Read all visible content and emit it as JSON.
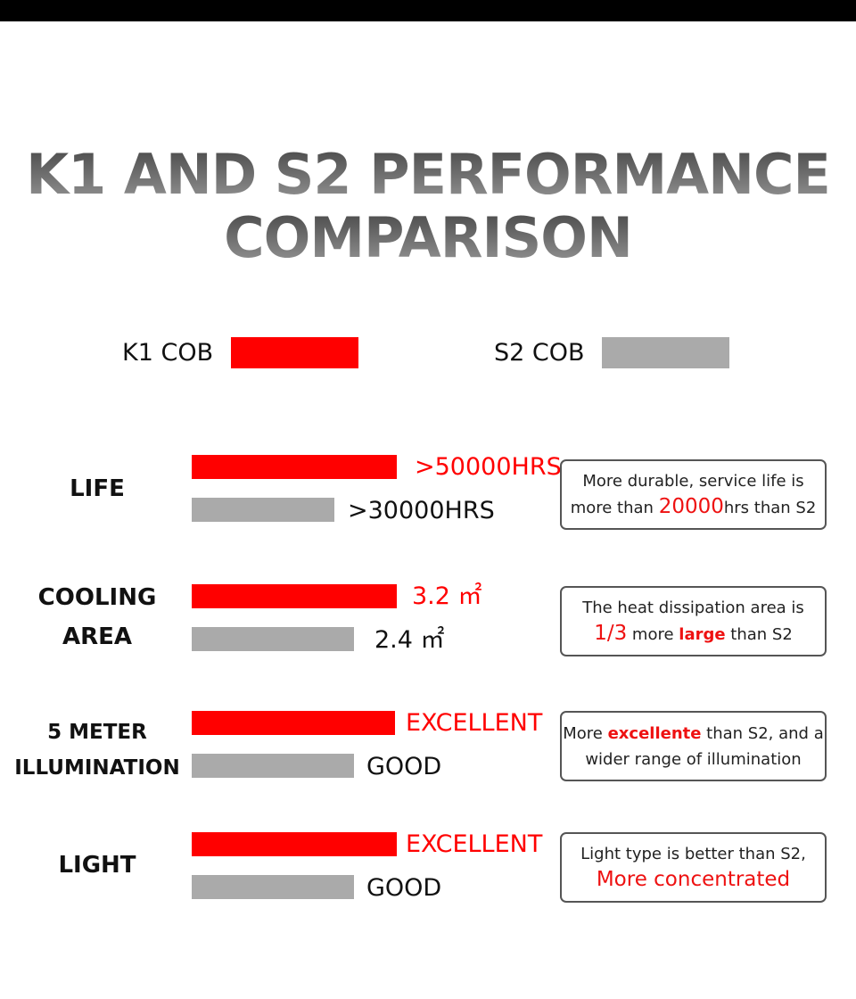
{
  "header": {
    "title_lines": [
      "K1 AND S2 PERFORMANCE",
      "COMPARISON"
    ]
  },
  "legend": [
    {
      "label": "K1 COB",
      "color": "#ff0000"
    },
    {
      "label": "S2 COB",
      "color": "#aaaaaa"
    }
  ],
  "rows": [
    {
      "label_lines": [
        "LIFE"
      ],
      "k1": ">50000HRS",
      "s2": ">30000HRS",
      "note_lines": [
        [
          {
            "text": "More durable, service life is",
            "style": "plain"
          }
        ],
        [
          {
            "text": "more than ",
            "style": "plain"
          },
          {
            "text": "20000",
            "style": "red-big"
          },
          {
            "text": "hrs than S2",
            "style": "plain"
          }
        ]
      ]
    },
    {
      "label_lines": [
        "COOLING",
        "AREA"
      ],
      "k1": "3.2 ㎡",
      "s2": "2.4 ㎡",
      "note_lines": [
        [
          {
            "text": "The heat dissipation area is",
            "style": "plain"
          }
        ],
        [
          {
            "text": "1/3",
            "style": "red-big"
          },
          {
            "text": " more ",
            "style": "plain"
          },
          {
            "text": "large",
            "style": "red-bold"
          },
          {
            "text": " than S2",
            "style": "plain"
          }
        ]
      ]
    },
    {
      "label_lines": [
        "5 METER",
        "ILLUMINATION"
      ],
      "k1": "EXCELLENT",
      "s2": "GOOD",
      "note_lines": [
        [
          {
            "text": "More ",
            "style": "plain"
          },
          {
            "text": "excellente",
            "style": "red-bold"
          },
          {
            "text": " than S2, and a",
            "style": "plain"
          }
        ],
        [
          {
            "text": "wider range of illumination",
            "style": "plain"
          }
        ]
      ]
    },
    {
      "label_lines": [
        "LIGHT"
      ],
      "k1": "EXCELLENT",
      "s2": "GOOD",
      "note_lines": [
        [
          {
            "text": "Light type is better than S2,",
            "style": "plain"
          }
        ],
        [
          {
            "text": "More concentrated",
            "style": "red-big"
          }
        ]
      ]
    }
  ]
}
